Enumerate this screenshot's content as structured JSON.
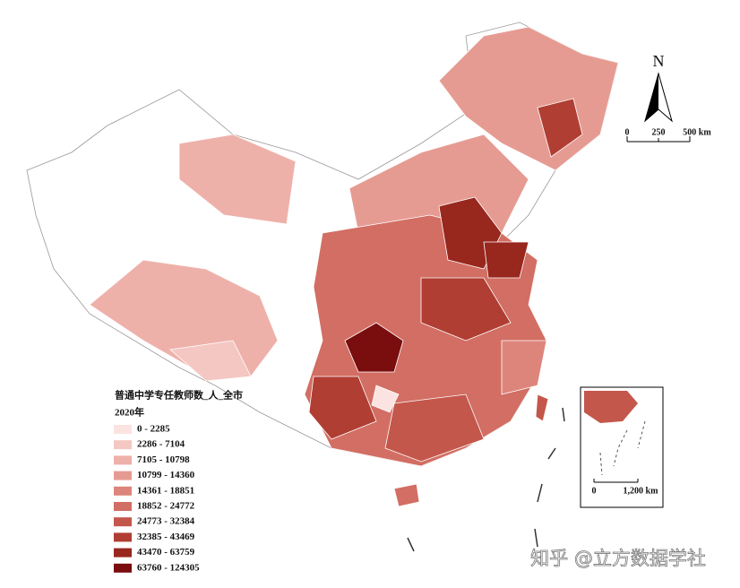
{
  "legend": {
    "title": "普通中学专任教师数_人_全市",
    "subtitle": "2020年",
    "classes": [
      {
        "label": "0 - 2285",
        "color": "#fbe3e1"
      },
      {
        "label": "2286 - 7104",
        "color": "#f4c7c2"
      },
      {
        "label": "7105 - 10798",
        "color": "#eeb1aa"
      },
      {
        "label": "10799 - 14360",
        "color": "#e69b92"
      },
      {
        "label": "14361 - 18851",
        "color": "#dd857b"
      },
      {
        "label": "18852 - 24772",
        "color": "#d26e63"
      },
      {
        "label": "24773 - 32384",
        "color": "#c4574b"
      },
      {
        "label": "32385 - 43469",
        "color": "#b03e33"
      },
      {
        "label": "43470 - 63759",
        "color": "#98271e"
      },
      {
        "label": "63760 - 124305",
        "color": "#7a0e0e"
      }
    ]
  },
  "north_arrow": "N",
  "scale_bar": {
    "labels": [
      "0",
      "250",
      "500 km"
    ]
  },
  "inset": {
    "scale_labels": [
      "0",
      "1,200 km"
    ]
  },
  "watermark": "知乎 @立方数据学社"
}
